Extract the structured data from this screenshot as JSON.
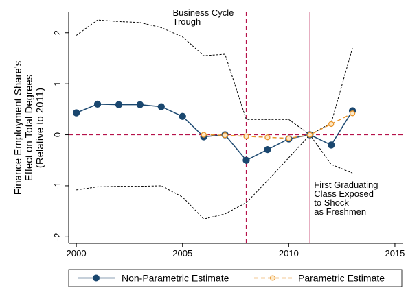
{
  "chart_data": {
    "type": "line",
    "y_label": [
      "Finance Employment Share's",
      "Effect on Total Degrees",
      "(Relative to 2011)"
    ],
    "x": [
      2000,
      2001,
      2002,
      2003,
      2004,
      2005,
      2006,
      2007,
      2008,
      2009,
      2010,
      2011,
      2012,
      2013
    ],
    "series": [
      {
        "name": "Non-Parametric Estimate",
        "color": "#1a476f",
        "style": "solid",
        "marker": "filled",
        "values": [
          0.43,
          0.6,
          0.59,
          0.59,
          0.55,
          0.36,
          -0.04,
          0.0,
          -0.5,
          -0.29,
          -0.08,
          0.0,
          -0.2,
          0.47
        ]
      },
      {
        "name": "Parametric Estimate",
        "color": "#e8942a",
        "style": "dash",
        "marker": "hollow",
        "values": [
          null,
          null,
          null,
          null,
          null,
          null,
          0.0,
          -0.01,
          -0.03,
          -0.05,
          -0.07,
          0.0,
          0.21,
          0.42
        ]
      }
    ],
    "confidence_band": {
      "color": "#000000",
      "upper": [
        1.95,
        2.25,
        2.22,
        2.2,
        2.1,
        1.92,
        1.55,
        1.58,
        0.3,
        0.3,
        0.3,
        0.0,
        0.23,
        1.7
      ],
      "lower": [
        -1.08,
        -1.02,
        -1.01,
        -1.01,
        -1.0,
        -1.22,
        -1.65,
        -1.55,
        -1.33,
        -0.9,
        -0.45,
        0.0,
        -0.58,
        -0.75
      ]
    },
    "reference_lines": {
      "color": "#b5124a",
      "x": [
        {
          "value": 2008,
          "style": "dash"
        },
        {
          "value": 2011,
          "style": "solid"
        }
      ],
      "y": [
        {
          "value": 0,
          "style": "dash"
        }
      ]
    },
    "annotations": [
      {
        "text": [
          "Business Cycle",
          "Trough"
        ]
      },
      {
        "text": [
          "First Graduating",
          "Class Exposed",
          "to Shock",
          "as Freshmen"
        ]
      }
    ],
    "xlim": [
      1999.64,
      2015.39
    ],
    "xticks": [
      2000,
      2005,
      2010,
      2015
    ],
    "ylim": [
      -2.13,
      2.4
    ],
    "yticks": [
      -2,
      -1,
      0,
      1,
      2
    ],
    "legend": "bottom"
  }
}
